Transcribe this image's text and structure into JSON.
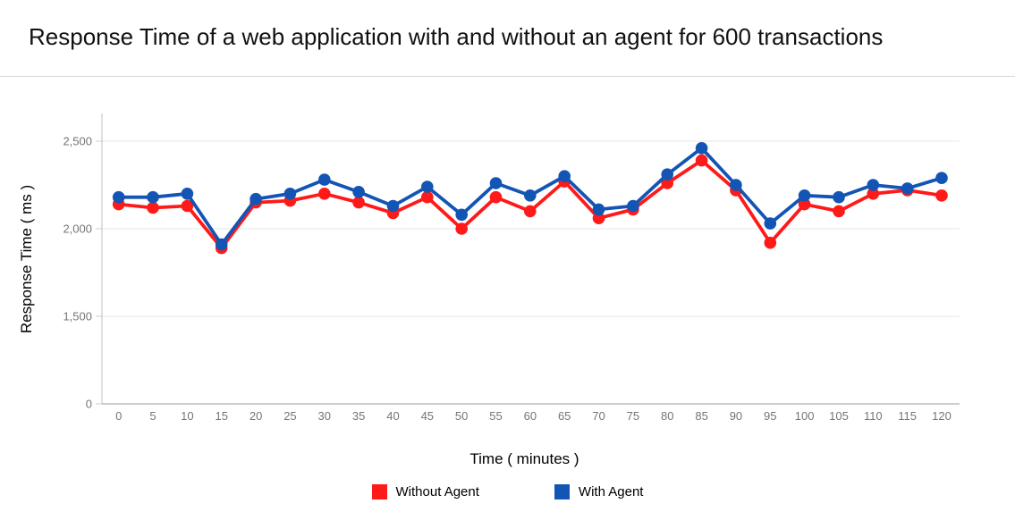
{
  "header": {
    "title": "Response Time of a web application with and without an agent for 600 transactions"
  },
  "chart_data": {
    "type": "line",
    "title": "Response Time of a web application with and without an agent for 600 transactions",
    "xlabel": "Time ( minutes )",
    "ylabel": "Response Time ( ms )",
    "x": [
      0,
      5,
      10,
      15,
      20,
      25,
      30,
      35,
      40,
      45,
      50,
      55,
      60,
      65,
      70,
      75,
      80,
      85,
      90,
      95,
      100,
      105,
      110,
      115,
      120
    ],
    "y_ticks": [
      0,
      1500,
      2000,
      2500
    ],
    "y_tick_labels": [
      "0",
      "1,500",
      "2,000",
      "2,500"
    ],
    "axis_note": "y-axis ticks are rendered at equal pixel spacing (compressed below 1,500)",
    "grid": true,
    "legend_position": "bottom",
    "series": [
      {
        "name": "Without Agent",
        "color": "#ff1a1a",
        "values": [
          2140,
          2120,
          2130,
          1890,
          2150,
          2160,
          2200,
          2150,
          2090,
          2180,
          2000,
          2180,
          2100,
          2270,
          2060,
          2110,
          2260,
          2390,
          2220,
          1920,
          2140,
          2100,
          2200,
          2220,
          2190
        ]
      },
      {
        "name": "With Agent",
        "color": "#1355b4",
        "values": [
          2180,
          2180,
          2200,
          1910,
          2170,
          2200,
          2280,
          2210,
          2130,
          2240,
          2080,
          2260,
          2190,
          2300,
          2110,
          2130,
          2310,
          2460,
          2250,
          2030,
          2190,
          2180,
          2250,
          2230,
          2290
        ]
      }
    ]
  }
}
